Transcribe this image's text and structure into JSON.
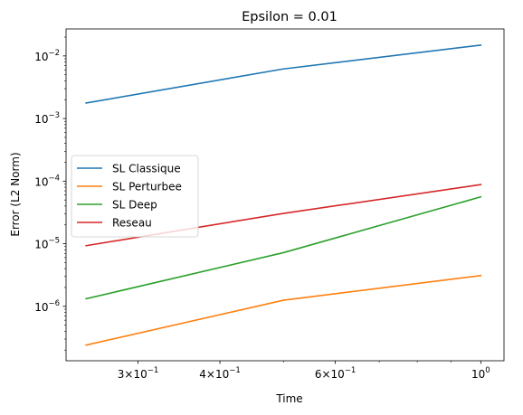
{
  "chart_data": {
    "type": "line",
    "title": "Epsilon = 0.01",
    "xlabel": "Time",
    "ylabel": "Error (L2 Norm)",
    "x_scale": "log",
    "y_scale": "log",
    "xlim": [
      0.233,
      1.085
    ],
    "ylim": [
      1.35e-07,
      0.027
    ],
    "grid": false,
    "legend_position": "center-left",
    "x_ticks": [
      {
        "value": 0.3,
        "base": "3×10",
        "exp": "−1"
      },
      {
        "value": 0.4,
        "base": "4×10",
        "exp": "−1"
      },
      {
        "value": 0.6,
        "base": "6×10",
        "exp": "−1"
      },
      {
        "value": 1.0,
        "base": "10",
        "exp": "0"
      }
    ],
    "x_minor_ticks": [
      0.5,
      0.7,
      0.8,
      0.9
    ],
    "y_ticks": [
      {
        "value": 1e-06,
        "base": "10",
        "exp": "−6"
      },
      {
        "value": 1e-05,
        "base": "10",
        "exp": "−5"
      },
      {
        "value": 0.0001,
        "base": "10",
        "exp": "−4"
      },
      {
        "value": 0.001,
        "base": "10",
        "exp": "−3"
      },
      {
        "value": 0.01,
        "base": "10",
        "exp": "−2"
      }
    ],
    "x": [
      0.25,
      0.5,
      1.0
    ],
    "series": [
      {
        "name": "SL Classique",
        "color": "#1f77b4",
        "values": [
          0.00177,
          0.0062,
          0.0149
        ]
      },
      {
        "name": "SL Perturbee",
        "color": "#ff7f0e",
        "values": [
          2.4e-07,
          1.25e-06,
          3.1e-06
        ]
      },
      {
        "name": "SL Deep",
        "color": "#2ca02c",
        "values": [
          1.32e-06,
          7.2e-06,
          5.6e-05
        ]
      },
      {
        "name": "Reseau",
        "color": "#d62728",
        "values": [
          9.3e-06,
          3.05e-05,
          8.8e-05
        ]
      }
    ]
  }
}
